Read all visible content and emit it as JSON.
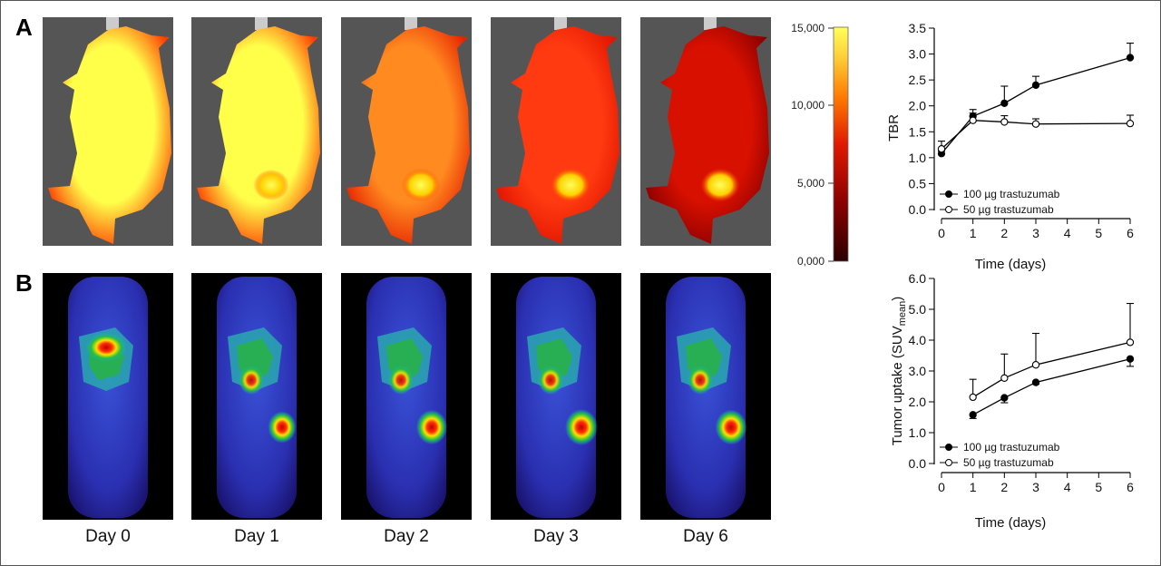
{
  "panels": {
    "a": "A",
    "b": "B"
  },
  "days": [
    "Day 0",
    "Day 1",
    "Day 2",
    "Day 3",
    "Day 6"
  ],
  "colorbar": {
    "ticks": [
      "15,000",
      "10,000",
      "5,000",
      "0,000"
    ],
    "colors": [
      "#2a0000",
      "#8a0000",
      "#e01a00",
      "#ff7a00",
      "#ffd23a",
      "#ffff5a"
    ]
  },
  "chart_data": [
    {
      "type": "line",
      "xlabel": "Time (days)",
      "ylabel": "TBR",
      "xlim": [
        0,
        6
      ],
      "ylim": [
        0,
        3.5
      ],
      "xticks": [
        "0",
        "1",
        "2",
        "3",
        "4",
        "5",
        "6"
      ],
      "yticks": [
        "0.0",
        "0.5",
        "1.0",
        "1.5",
        "2.0",
        "2.5",
        "3.0",
        "3.5"
      ],
      "legend_position": "bottom-left",
      "series": [
        {
          "name": "100 µg trastuzumab",
          "marker": "filled",
          "x": [
            0,
            1,
            2,
            3,
            6
          ],
          "y": [
            1.08,
            1.8,
            2.05,
            2.4,
            2.93
          ],
          "err": [
            0.05,
            0.13,
            0.33,
            0.17,
            0.28
          ]
        },
        {
          "name": "50 µg trastuzumab",
          "marker": "open",
          "x": [
            0,
            1,
            2,
            3,
            6
          ],
          "y": [
            1.17,
            1.72,
            1.69,
            1.65,
            1.66
          ],
          "err": [
            0.15,
            0.14,
            0.12,
            0.1,
            0.16
          ]
        }
      ]
    },
    {
      "type": "line",
      "xlabel": "Time (days)",
      "ylabel": "Tumor uptake (SUV",
      "ylabel_sub": "mean",
      "ylabel_end": ")",
      "xlim": [
        0,
        6
      ],
      "ylim": [
        0,
        6
      ],
      "xticks": [
        "0",
        "1",
        "2",
        "3",
        "4",
        "5",
        "6"
      ],
      "yticks": [
        "0.0",
        "1.0",
        "2.0",
        "3.0",
        "4.0",
        "5.0",
        "6.0"
      ],
      "legend_position": "bottom-left",
      "series": [
        {
          "name": "100 µg trastuzumab",
          "marker": "filled",
          "x": [
            1,
            2,
            3,
            6
          ],
          "y": [
            1.58,
            2.13,
            2.63,
            3.39
          ],
          "err": [
            0.12,
            0.16,
            0.06,
            0.24
          ]
        },
        {
          "name": "50 µg trastuzumab",
          "marker": "open",
          "x": [
            1,
            2,
            3,
            6
          ],
          "y": [
            2.15,
            2.77,
            3.2,
            3.93
          ],
          "err": [
            0.58,
            0.78,
            1.02,
            1.26
          ]
        }
      ]
    }
  ]
}
